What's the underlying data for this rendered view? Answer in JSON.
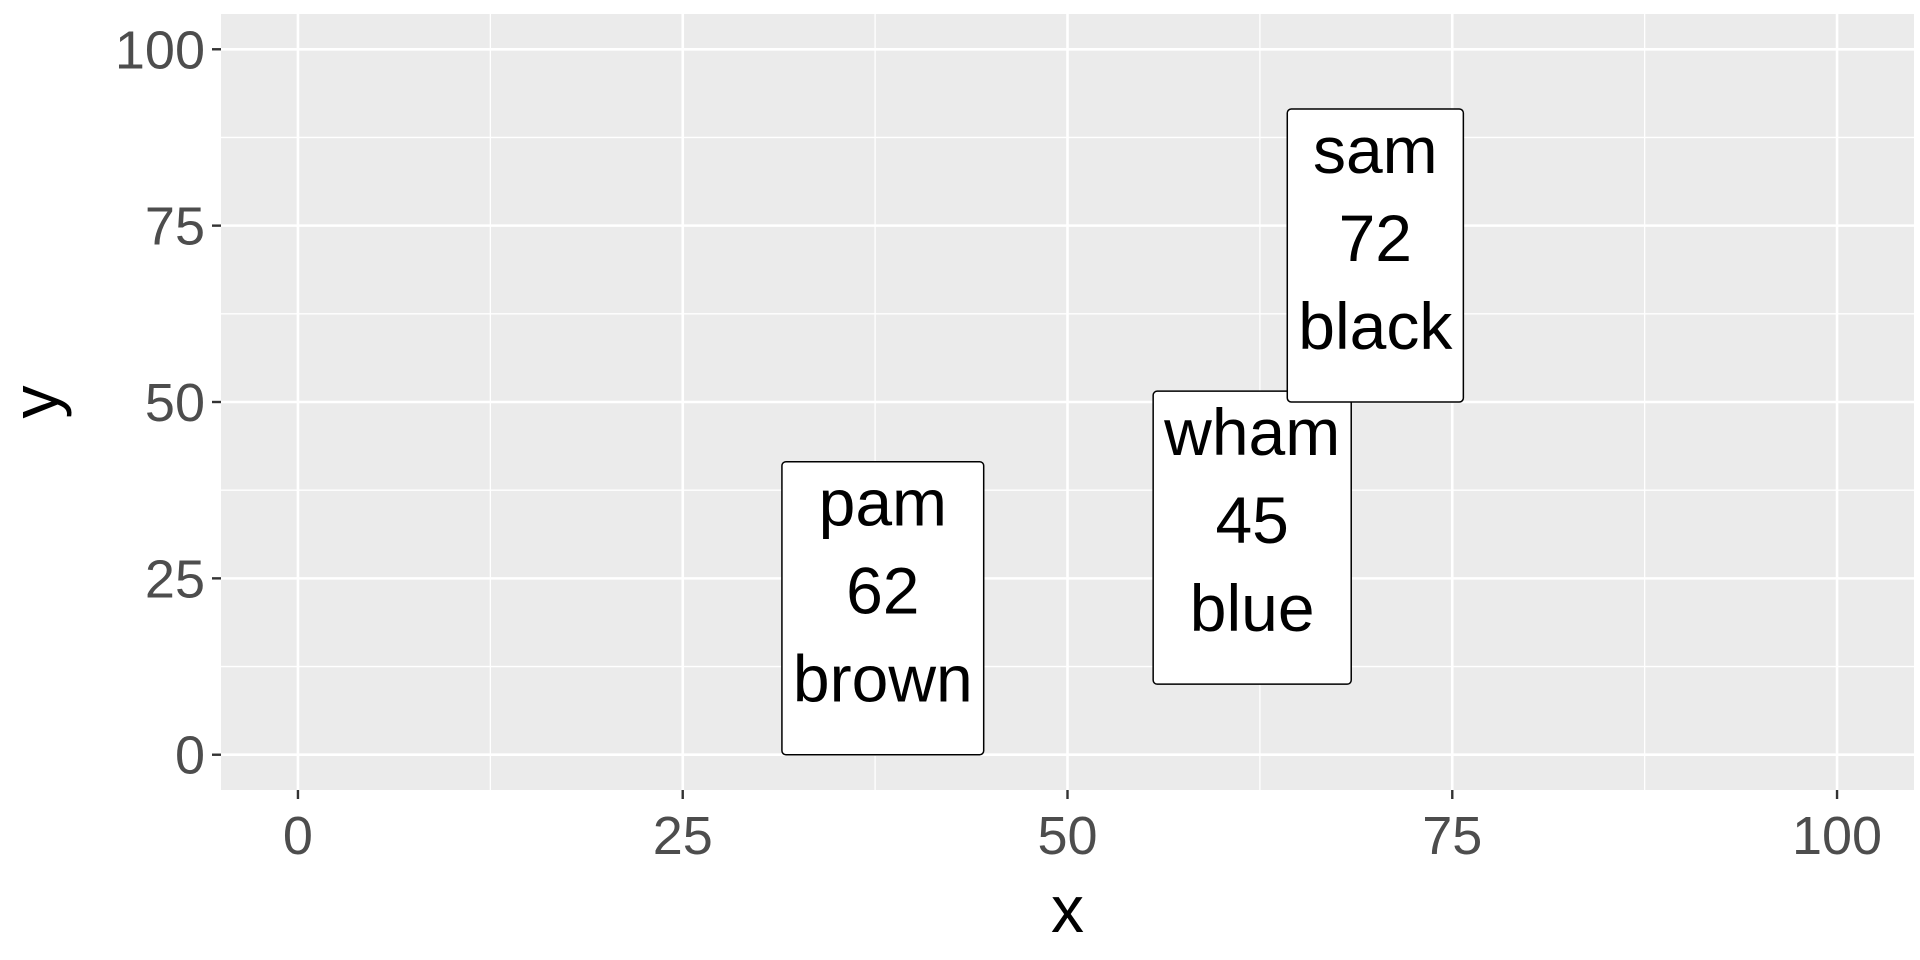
{
  "chart_data": {
    "type": "scatter",
    "title": "",
    "xlabel": "x",
    "ylabel": "y",
    "xlim": [
      -5,
      105
    ],
    "ylim": [
      -5,
      105
    ],
    "x_ticks": [
      0,
      25,
      50,
      75,
      100
    ],
    "y_ticks": [
      0,
      25,
      50,
      75,
      100
    ],
    "x_tick_labels": [
      "0",
      "25",
      "50",
      "75",
      "100"
    ],
    "y_tick_labels": [
      "0",
      "25",
      "50",
      "75",
      "100"
    ],
    "grid": true,
    "legend": "none",
    "points": [
      {
        "x": 38,
        "y": 0,
        "name": "pam",
        "value": "62",
        "color": "brown"
      },
      {
        "x": 62,
        "y": 10,
        "name": "wham",
        "value": "45",
        "color": "blue"
      },
      {
        "x": 70,
        "y": 50,
        "name": "sam",
        "value": "72",
        "color": "black"
      }
    ],
    "colors": {
      "panel": "#EBEBEB",
      "grid": "#FFFFFF",
      "tick_text": "#4D4D4D",
      "label_fill": "#FFFFFF",
      "label_border": "#000000"
    }
  }
}
